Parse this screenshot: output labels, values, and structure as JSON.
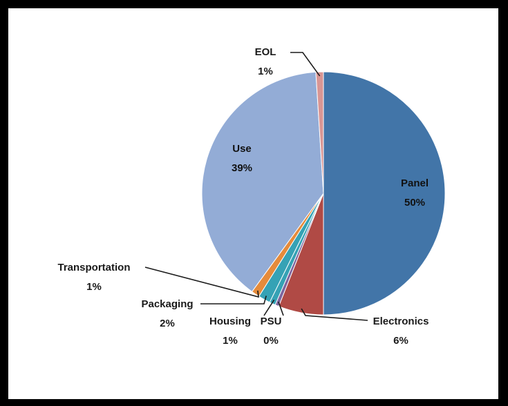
{
  "chart_data": {
    "type": "pie",
    "title": "",
    "start_angle_deg": 0,
    "direction": "clockwise",
    "slices": [
      {
        "label": "Panel",
        "value_label": "50%",
        "value": 50,
        "color": "#4275A8"
      },
      {
        "label": "Electronics",
        "value_label": "6%",
        "value": 6,
        "color": "#B04A45"
      },
      {
        "label": "PSU",
        "value_label": "0%",
        "value": 0.5,
        "color": "#7E659E"
      },
      {
        "label": "Housing",
        "value_label": "1%",
        "value": 0.8,
        "color": "#35A2B5"
      },
      {
        "label": "Packaging",
        "value_label": "2%",
        "value": 1.6,
        "color": "#35A2B5"
      },
      {
        "label": "Transportation",
        "value_label": "1%",
        "value": 1.1,
        "color": "#E58B3B"
      },
      {
        "label": "Use",
        "value_label": "39%",
        "value": 39,
        "color": "#93ACD6"
      },
      {
        "label": "EOL",
        "value_label": "1%",
        "value": 1.0,
        "color": "#D99694"
      }
    ],
    "legend": "none"
  }
}
